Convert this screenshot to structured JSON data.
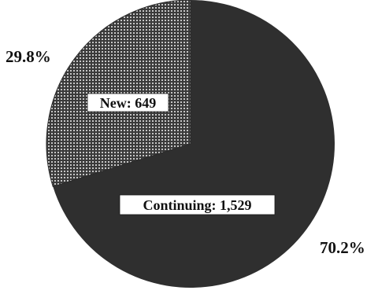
{
  "chart_data": {
    "type": "pie",
    "title": "",
    "slices": [
      {
        "name": "Continuing",
        "label": "Continuing: 1,529",
        "value": 1529,
        "percent_label": "70.2%",
        "color": "#2f2f2f"
      },
      {
        "name": "New",
        "label": "New: 649",
        "value": 649,
        "percent_label": "29.8%",
        "pattern": "dotted",
        "color": "#3a3a3a"
      }
    ],
    "legend": "none"
  }
}
